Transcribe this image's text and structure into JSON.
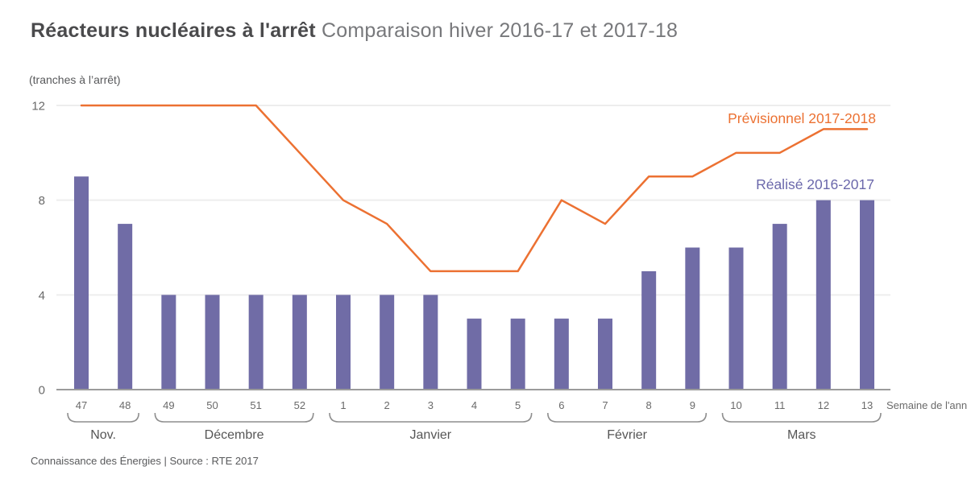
{
  "header": {
    "title": "Réacteurs nucléaires à l'arrêt",
    "subtitle": "Comparaison hiver 2016-17 et 2017-18"
  },
  "footer": {
    "text": "Connaissance des Énergies | Source : RTE 2017"
  },
  "chart_data": {
    "type": "bar+line",
    "title": "Réacteurs nucléaires à l'arrêt — Comparaison hiver 2016-17 et 2017-18",
    "unit_label": "(tranches à l’arrêt)",
    "xlabel": "Semaine de l'année",
    "ylim": [
      0,
      12
    ],
    "yticks": [
      0,
      4,
      8,
      12
    ],
    "grid": "horizontal",
    "legend_position": "inline-top-right",
    "categories": [
      "47",
      "48",
      "49",
      "50",
      "51",
      "52",
      "1",
      "2",
      "3",
      "4",
      "5",
      "6",
      "7",
      "8",
      "9",
      "10",
      "11",
      "12",
      "13"
    ],
    "series": [
      {
        "name": "Réalisé 2016-2017",
        "type": "bar",
        "color": "#706CA6",
        "label_color": "#6B68AB",
        "values": [
          9,
          7,
          4,
          4,
          4,
          4,
          4,
          4,
          4,
          3,
          3,
          3,
          3,
          5,
          6,
          6,
          7,
          8,
          8
        ]
      },
      {
        "name": "Prévisionnel 2017-2018",
        "type": "line",
        "color": "#EC7132",
        "values": [
          12,
          12,
          12,
          12,
          12,
          10,
          8,
          7,
          5,
          5,
          5,
          8,
          7,
          9,
          9,
          10,
          10,
          11,
          11
        ]
      }
    ],
    "month_groups": [
      {
        "label": "Nov.",
        "from": 0,
        "to": 1
      },
      {
        "label": "Décembre",
        "from": 2,
        "to": 5
      },
      {
        "label": "Janvier",
        "from": 6,
        "to": 10
      },
      {
        "label": "Février",
        "from": 11,
        "to": 14
      },
      {
        "label": "Mars",
        "from": 15,
        "to": 18
      }
    ]
  },
  "colors": {
    "bar": "#706CA6",
    "line": "#EC7132",
    "grid": "#EDEDED",
    "baseline": "#9B9B9B",
    "axis_text": "#6A6A6A",
    "bracket": "#8E8E8E",
    "month_text": "#565656",
    "title": "#4A4A4C",
    "subtitle": "#77787B",
    "muted_text": "#58595B"
  }
}
